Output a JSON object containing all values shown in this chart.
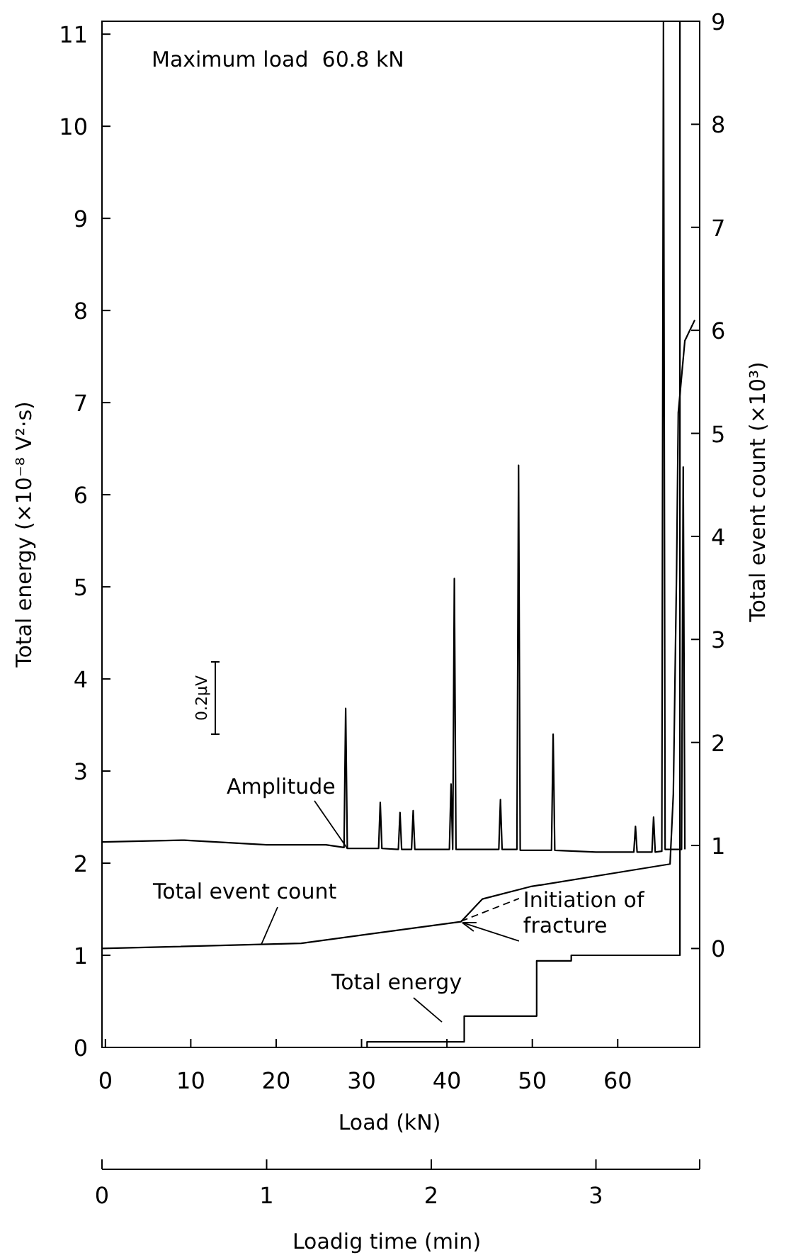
{
  "chart_data": {
    "type": "line",
    "xlabel": "Loadig time (min)",
    "xlim": [
      0,
      3.63
    ],
    "xticks": [
      0,
      1,
      2,
      3
    ],
    "x2label": "Load (kN)",
    "x2lim": [
      -0.4,
      69.6
    ],
    "x2ticks": [
      0,
      10,
      20,
      30,
      40,
      50,
      60
    ],
    "ylabel": "Total energy (×10⁻⁸ V²·s)",
    "ylim": [
      0,
      11.14
    ],
    "yticks": [
      0,
      1,
      2,
      3,
      4,
      5,
      6,
      7,
      8,
      9,
      10,
      11
    ],
    "y2label": "Total event count (×10³)",
    "y2lim": [
      -0.96,
      9
    ],
    "y2ticks": [
      0,
      1,
      2,
      3,
      4,
      5,
      6,
      7,
      8,
      9
    ],
    "grid": false,
    "marker": "none",
    "line_style": "solid",
    "series": [
      {
        "name": "Amplitude",
        "color": "#000000",
        "x": [
          0,
          0.5,
          1.0,
          1.36,
          1.47,
          1.48,
          1.49,
          1.68,
          1.69,
          1.7,
          1.8,
          1.81,
          1.82,
          1.88,
          1.89,
          1.9,
          2.11,
          2.12,
          2.13,
          2.14,
          2.15,
          2.41,
          2.42,
          2.43,
          2.52,
          2.53,
          2.54,
          2.73,
          2.74,
          2.75,
          3.0,
          3.23,
          3.24,
          3.25,
          3.34,
          3.35,
          3.36,
          3.4,
          3.41,
          3.42,
          3.52,
          3.53,
          3.54
        ],
        "values": [
          2.23,
          2.25,
          2.2,
          2.2,
          2.17,
          3.68,
          2.16,
          2.16,
          2.66,
          2.16,
          2.15,
          2.55,
          2.15,
          2.15,
          2.57,
          2.15,
          2.15,
          2.86,
          2.15,
          5.09,
          2.15,
          2.15,
          2.69,
          2.15,
          2.15,
          6.32,
          2.14,
          2.14,
          3.4,
          2.14,
          2.12,
          2.12,
          2.4,
          2.12,
          2.12,
          2.5,
          2.12,
          2.13,
          11.14,
          2.15,
          2.15,
          6.3,
          2.15
        ]
      },
      {
        "name": "Total event count",
        "axis": "y2",
        "color": "#000000",
        "x": [
          0,
          1.21,
          2.18,
          2.31,
          2.6,
          3.45,
          3.47,
          3.49,
          3.5,
          3.54,
          3.6
        ],
        "values": [
          0,
          0.05,
          0.26,
          0.48,
          0.6,
          0.82,
          1.5,
          3.7,
          5.2,
          5.9,
          6.1
        ]
      },
      {
        "name": "Total energy",
        "type": "step",
        "color": "#000000",
        "x": [
          1.6,
          1.61,
          2.2,
          2.64,
          2.85,
          3.51
        ],
        "values": [
          0,
          0.06,
          0.34,
          0.94,
          1.0,
          11.14
        ]
      }
    ],
    "annotations": [
      "Maximum load  60.8 kN",
      "0.2μV",
      {
        "text": "Initiation of fracture",
        "x": 2.18,
        "y": 1.37
      }
    ]
  }
}
